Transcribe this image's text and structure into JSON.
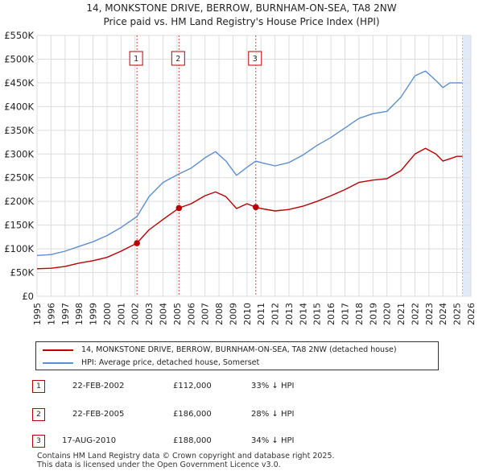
{
  "title_line1": "14, MONKSTONE DRIVE, BERROW, BURNHAM-ON-SEA, TA8 2NW",
  "title_line2": "Price paid vs. HM Land Registry's House Price Index (HPI)",
  "legend": {
    "property_label": "14, MONKSTONE DRIVE, BERROW, BURNHAM-ON-SEA, TA8 2NW (detached house)",
    "hpi_label": "HPI: Average price, detached house, Somerset"
  },
  "sales": [
    {
      "num": "1",
      "date": "22-FEB-2002",
      "price": "£112,000",
      "delta": "33% ↓ HPI"
    },
    {
      "num": "2",
      "date": "22-FEB-2005",
      "price": "£186,000",
      "delta": "28% ↓ HPI"
    },
    {
      "num": "3",
      "date": "17-AUG-2010",
      "price": "£188,000",
      "delta": "34% ↓ HPI"
    }
  ],
  "footer_line1": "Contains HM Land Registry data © Crown copyright and database right 2025.",
  "footer_line2": "This data is licensed under the Open Government Licence v3.0.",
  "chart_data": {
    "type": "line",
    "ylim": [
      0,
      550000
    ],
    "xlim": [
      1995,
      2026
    ],
    "ytick_labels": [
      "£0",
      "£50K",
      "£100K",
      "£150K",
      "£200K",
      "£250K",
      "£300K",
      "£350K",
      "£400K",
      "£450K",
      "£500K",
      "£550K"
    ],
    "ytick_values": [
      0,
      50000,
      100000,
      150000,
      200000,
      250000,
      300000,
      350000,
      400000,
      450000,
      500000,
      550000
    ],
    "xtick_labels": [
      "1995",
      "1996",
      "1997",
      "1998",
      "1999",
      "2000",
      "2001",
      "2002",
      "2003",
      "2004",
      "2005",
      "2006",
      "2007",
      "2008",
      "2009",
      "2010",
      "2011",
      "2012",
      "2013",
      "2014",
      "2015",
      "2016",
      "2017",
      "2018",
      "2019",
      "2020",
      "2021",
      "2022",
      "2023",
      "2024",
      "2025",
      "2026"
    ],
    "grid": true,
    "colors": {
      "property": "#bb0000",
      "hpi": "#5b8fd4",
      "shade": "#dbe5f5",
      "vline": "#dd4444"
    },
    "series": [
      {
        "name": "14, MONKSTONE DRIVE, BERROW, BURNHAM-ON-SEA, TA8 2NW (detached house)",
        "x": [
          1995,
          1996,
          1997,
          1998,
          1999,
          2000,
          2001,
          2002.14,
          2003,
          2004,
          2005.14,
          2006,
          2007,
          2007.75,
          2008.5,
          2009.25,
          2010,
          2010.63,
          2011,
          2012,
          2013,
          2014,
          2015,
          2016,
          2017,
          2018,
          2019,
          2020,
          2021,
          2022,
          2022.75,
          2023.5,
          2024,
          2024.5,
          2025,
          2025.4
        ],
        "values": [
          58000,
          59000,
          63000,
          70000,
          75000,
          82000,
          95000,
          112000,
          140000,
          162000,
          186000,
          195000,
          212000,
          220000,
          210000,
          185000,
          195000,
          188000,
          185000,
          180000,
          183000,
          190000,
          200000,
          212000,
          225000,
          240000,
          245000,
          248000,
          265000,
          300000,
          312000,
          300000,
          285000,
          290000,
          295000,
          295000
        ]
      },
      {
        "name": "HPI: Average price, detached house, Somerset",
        "x": [
          1995,
          1996,
          1997,
          1998,
          1999,
          2000,
          2001,
          2002.14,
          2003,
          2004,
          2005.14,
          2006,
          2007,
          2007.75,
          2008.5,
          2009.25,
          2010,
          2010.63,
          2011,
          2012,
          2013,
          2014,
          2015,
          2016,
          2017,
          2018,
          2019,
          2020,
          2021,
          2022,
          2022.75,
          2023.5,
          2024,
          2024.5,
          2025,
          2025.4
        ],
        "values": [
          86000,
          88000,
          95000,
          105000,
          115000,
          128000,
          145000,
          168000,
          210000,
          240000,
          258000,
          270000,
          292000,
          305000,
          285000,
          255000,
          272000,
          285000,
          282000,
          275000,
          282000,
          298000,
          318000,
          335000,
          355000,
          375000,
          385000,
          390000,
          420000,
          465000,
          475000,
          455000,
          440000,
          450000,
          450000,
          450000
        ]
      }
    ],
    "sale_markers": [
      {
        "label": "1",
        "x": 2002.14,
        "y": 112000
      },
      {
        "label": "2",
        "x": 2005.14,
        "y": 186000
      },
      {
        "label": "3",
        "x": 2010.63,
        "y": 188000
      }
    ]
  }
}
